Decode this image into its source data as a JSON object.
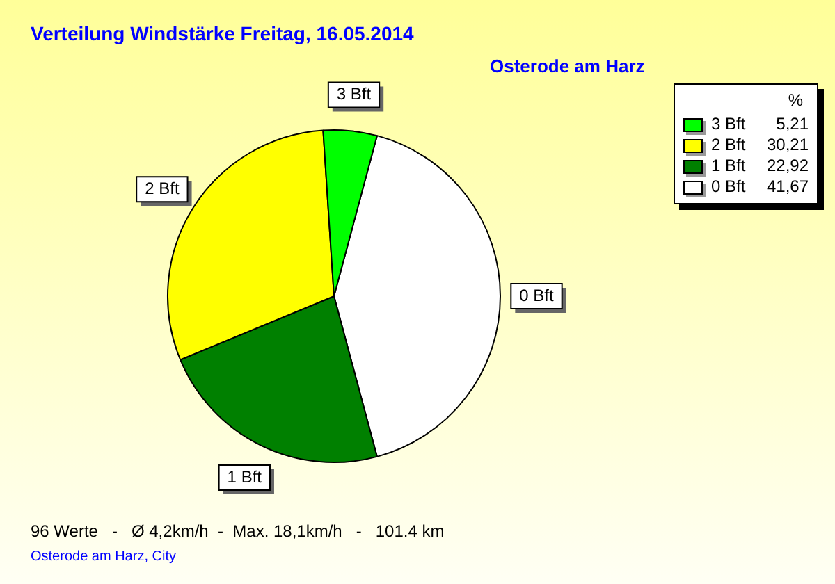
{
  "chart_data": {
    "type": "pie",
    "title": "Verteilung Windstärke  Freitag, 16.05.2014",
    "subtitle": "Osterode am Harz",
    "categories": [
      "3 Bft",
      "2 Bft",
      "1 Bft",
      "0 Bft"
    ],
    "values": [
      5.21,
      30.21,
      22.92,
      41.67
    ],
    "value_labels": [
      "5,21",
      "30,21",
      "22,92",
      "41,67"
    ],
    "colors": [
      "#00ff00",
      "#ffff00",
      "#008000",
      "#ffffff"
    ],
    "legend": "top right",
    "legend_title": "%",
    "annotations": [
      "96 Werte   -   Ø 4,2km/h  -  Max. 18,1km/h   -   101.4 km",
      "Osterode am Harz, City"
    ]
  }
}
